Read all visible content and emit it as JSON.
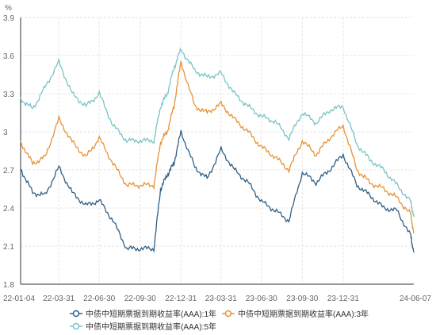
{
  "chart_data": {
    "type": "line",
    "y_unit": "%",
    "ylim": [
      1.8,
      3.9
    ],
    "y_ticks": [
      "1.8",
      "2.1",
      "2.4",
      "2.7",
      "3",
      "3.3",
      "3.6",
      "3.9"
    ],
    "x_ticks": [
      "22-01-04",
      "22-03-31",
      "22-06-30",
      "22-09-30",
      "22-12-31",
      "23-03-31",
      "23-06-30",
      "23-09-30",
      "23-12-31",
      "24-06-07"
    ],
    "x": [
      "22-01-04",
      "22-01-31",
      "22-02-28",
      "22-03-31",
      "22-04-30",
      "22-05-31",
      "22-06-30",
      "22-07-31",
      "22-08-31",
      "22-09-30",
      "22-10-31",
      "22-11-15",
      "22-11-30",
      "22-12-15",
      "22-12-31",
      "23-01-31",
      "23-02-28",
      "23-03-31",
      "23-04-30",
      "23-05-31",
      "23-06-30",
      "23-07-31",
      "23-08-31",
      "23-09-30",
      "23-10-31",
      "23-11-30",
      "23-12-31",
      "24-01-31",
      "24-02-29",
      "24-03-31",
      "24-04-30",
      "24-05-31",
      "24-06-07"
    ],
    "grid": true,
    "legend_position": "bottom",
    "series": [
      {
        "name": "中债中短期票据到期收益率(AAA):1年",
        "color": "#2f5f86",
        "values": [
          2.71,
          2.52,
          2.5,
          2.72,
          2.52,
          2.42,
          2.46,
          2.3,
          2.08,
          2.08,
          2.08,
          2.55,
          2.66,
          2.75,
          3.0,
          2.72,
          2.63,
          2.86,
          2.7,
          2.6,
          2.45,
          2.38,
          2.3,
          2.68,
          2.6,
          2.7,
          2.82,
          2.58,
          2.5,
          2.4,
          2.38,
          2.18,
          2.05
        ]
      },
      {
        "name": "中债中短期票据到期收益率(AAA):3年",
        "color": "#e79233",
        "values": [
          2.92,
          2.75,
          2.8,
          3.1,
          2.92,
          2.8,
          2.95,
          2.75,
          2.58,
          2.58,
          2.58,
          2.92,
          3.0,
          3.2,
          3.55,
          3.2,
          3.15,
          3.22,
          3.1,
          3.0,
          2.88,
          2.8,
          2.7,
          2.93,
          2.82,
          2.95,
          3.05,
          2.7,
          2.6,
          2.55,
          2.48,
          2.35,
          2.2
        ]
      },
      {
        "name": "中债中短期票据到期收益率(AAA):5年",
        "color": "#79c3c6",
        "values": [
          3.26,
          3.18,
          3.35,
          3.55,
          3.3,
          3.2,
          3.3,
          3.05,
          2.93,
          2.93,
          2.93,
          3.2,
          3.3,
          3.5,
          3.65,
          3.48,
          3.43,
          3.46,
          3.3,
          3.2,
          3.12,
          3.08,
          2.95,
          3.15,
          3.07,
          3.17,
          3.2,
          2.9,
          2.78,
          2.7,
          2.58,
          2.45,
          2.33
        ]
      }
    ]
  }
}
